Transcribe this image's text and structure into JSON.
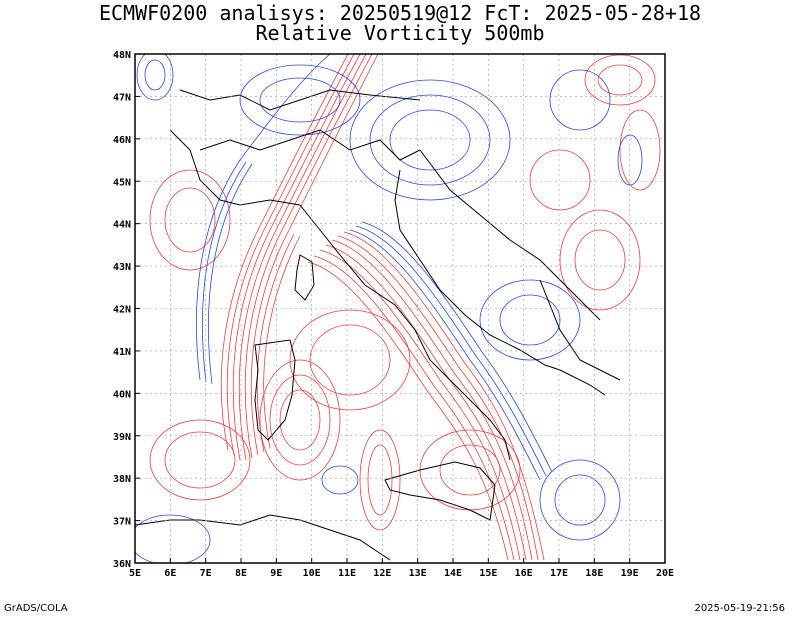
{
  "title_line1": "ECMWF0200 analisys: 20250519@12 FcT: 2025-05-28+18",
  "title_line2": "Relative Vorticity 500mb",
  "footer_left": "GrADS/COLA",
  "footer_right": "2025-05-19-21:56",
  "map": {
    "lon_range": [
      5,
      20
    ],
    "lat_range": [
      36,
      48
    ],
    "lon_ticks": [
      "5E",
      "6E",
      "7E",
      "8E",
      "9E",
      "10E",
      "11E",
      "12E",
      "13E",
      "14E",
      "15E",
      "16E",
      "17E",
      "18E",
      "19E",
      "20E"
    ],
    "lat_ticks": [
      "36N",
      "37N",
      "38N",
      "39N",
      "40N",
      "41N",
      "42N",
      "43N",
      "44N",
      "45N",
      "46N",
      "47N",
      "48N"
    ],
    "grid": "dotted",
    "colors": {
      "positive": "#f03c3c",
      "negative": "#2846e6",
      "coast": "#000000",
      "grid": "#999999"
    }
  }
}
